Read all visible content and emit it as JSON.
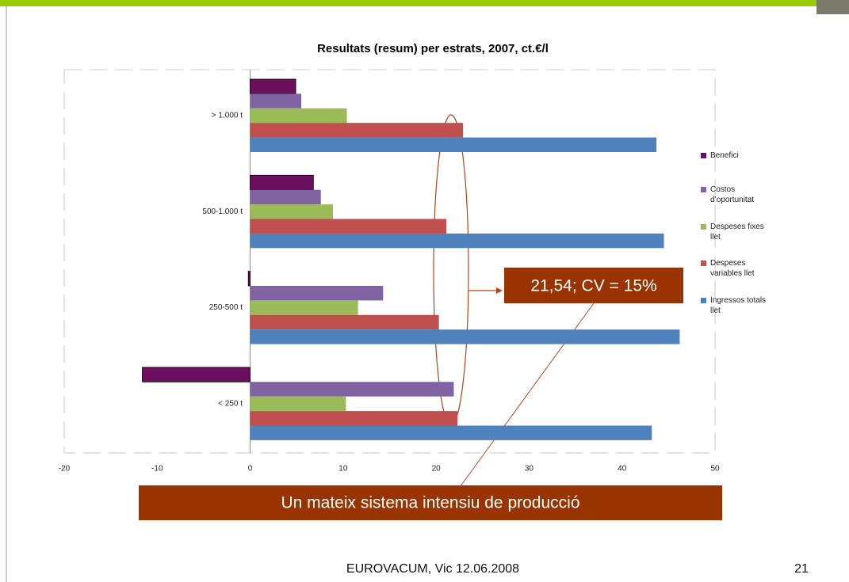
{
  "chart_data": {
    "type": "bar",
    "orientation": "horizontal",
    "title": "Resultats (resum) per estrats, 2007, ct.€/l",
    "categories": [
      "> 1.000 t",
      "500-1.000 t",
      "250-500 t",
      "< 250 t"
    ],
    "series": [
      {
        "name": "Benefici",
        "color": "#6b0f5e",
        "values": [
          4.9,
          6.8,
          -0.2,
          -11.6
        ]
      },
      {
        "name": "Costos d’oportunitat",
        "color": "#8064a2",
        "values": [
          5.5,
          7.6,
          14.3,
          21.9
        ]
      },
      {
        "name": "Despeses fixes llet",
        "color": "#9bbb59",
        "values": [
          10.4,
          8.9,
          11.6,
          10.3
        ]
      },
      {
        "name": "Despeses variables llet",
        "color": "#c0504d",
        "values": [
          22.9,
          21.1,
          20.3,
          22.3
        ]
      },
      {
        "name": "Ingressos totals llet",
        "color": "#4f81bd",
        "values": [
          43.7,
          44.5,
          46.2,
          43.2
        ]
      }
    ],
    "xlim": [
      -20,
      50
    ],
    "xticks": [
      -20,
      -10,
      0,
      10,
      20,
      30,
      40,
      50
    ],
    "legend": "right"
  },
  "callout": "21,54; CV = 15%",
  "banner": "Un mateix sistema intensiu de producció",
  "footer": "EUROVACUM, Vic 12.06.2008",
  "page_number": 21
}
